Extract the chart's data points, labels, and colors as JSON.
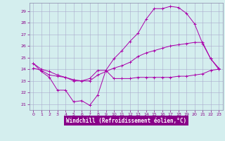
{
  "title": "",
  "xlabel": "Windchill (Refroidissement éolien,°C)",
  "bg_color": "#d4eeee",
  "grid_color": "#aaaacc",
  "line_color": "#aa00aa",
  "xlim": [
    -0.5,
    23.5
  ],
  "ylim": [
    20.5,
    29.7
  ],
  "xticks": [
    0,
    1,
    2,
    3,
    4,
    5,
    6,
    7,
    8,
    9,
    10,
    11,
    12,
    13,
    14,
    15,
    16,
    17,
    18,
    19,
    20,
    21,
    22,
    23
  ],
  "yticks": [
    21,
    22,
    23,
    24,
    25,
    26,
    27,
    28,
    29
  ],
  "line1_x": [
    0,
    1,
    2,
    3,
    4,
    5,
    6,
    7,
    8,
    9,
    10,
    11,
    12,
    13,
    14,
    15,
    16,
    17,
    18,
    19,
    20,
    21,
    22,
    23
  ],
  "line1_y": [
    24.5,
    23.8,
    23.3,
    22.2,
    22.2,
    21.2,
    21.3,
    20.9,
    21.8,
    23.9,
    23.2,
    23.2,
    23.2,
    23.3,
    23.3,
    23.3,
    23.3,
    23.3,
    23.4,
    23.4,
    23.5,
    23.6,
    23.9,
    24.0
  ],
  "line2_x": [
    0,
    1,
    2,
    3,
    4,
    5,
    6,
    7,
    8,
    9,
    10,
    11,
    12,
    13,
    14,
    15,
    16,
    17,
    18,
    19,
    20,
    21,
    22,
    23
  ],
  "line2_y": [
    24.1,
    23.9,
    23.5,
    23.4,
    23.3,
    23.1,
    23.0,
    23.0,
    23.5,
    23.8,
    24.1,
    24.3,
    24.6,
    25.1,
    25.4,
    25.6,
    25.8,
    26.0,
    26.1,
    26.2,
    26.3,
    26.3,
    24.9,
    24.1
  ],
  "line3_x": [
    0,
    1,
    2,
    3,
    4,
    5,
    6,
    7,
    8,
    9,
    10,
    11,
    12,
    13,
    14,
    15,
    16,
    17,
    18,
    19,
    20,
    21,
    22,
    23
  ],
  "line3_y": [
    24.5,
    24.0,
    23.8,
    23.5,
    23.3,
    23.0,
    23.0,
    23.2,
    23.9,
    23.9,
    24.9,
    25.6,
    26.4,
    27.1,
    28.3,
    29.2,
    29.2,
    29.4,
    29.3,
    28.8,
    27.9,
    26.2,
    24.9,
    24.0
  ]
}
